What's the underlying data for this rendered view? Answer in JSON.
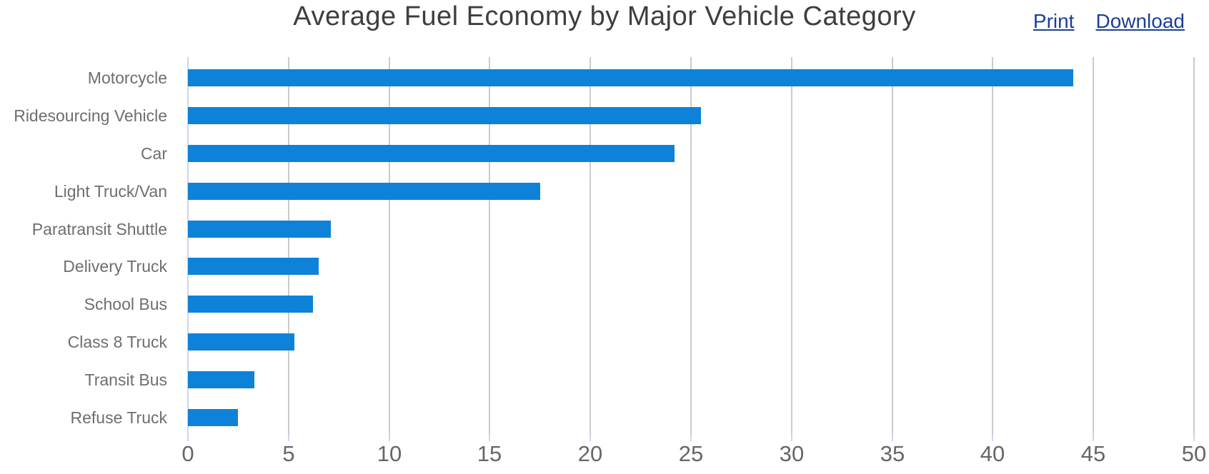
{
  "header": {
    "title": "Average Fuel Economy by Major Vehicle Category",
    "links": [
      {
        "label": "Print"
      },
      {
        "label": "Download"
      }
    ]
  },
  "colors": {
    "bar": "#0d82d8",
    "link": "#1b3f9b",
    "gridline": "#cbcbcb",
    "axis_line": "#ccd6eb",
    "category_label": "#6e6e6e",
    "tick_label": "#666666",
    "title": "#3e3e3e"
  },
  "chart_data": {
    "type": "bar",
    "orientation": "horizontal",
    "title": "Average Fuel Economy by Major Vehicle Category",
    "categories": [
      "Motorcycle",
      "Ridesourcing Vehicle",
      "Car",
      "Light Truck/Van",
      "Paratransit Shuttle",
      "Delivery Truck",
      "School Bus",
      "Class 8 Truck",
      "Transit Bus",
      "Refuse Truck"
    ],
    "values": [
      44,
      25.5,
      24.2,
      17.5,
      7.1,
      6.5,
      6.2,
      5.3,
      3.3,
      2.5
    ],
    "xlabel": "",
    "ylabel": "",
    "xlim": [
      0,
      50
    ],
    "xticks": [
      0,
      5,
      10,
      15,
      20,
      25,
      30,
      35,
      40,
      45,
      50
    ],
    "grid": true,
    "legend": false
  }
}
